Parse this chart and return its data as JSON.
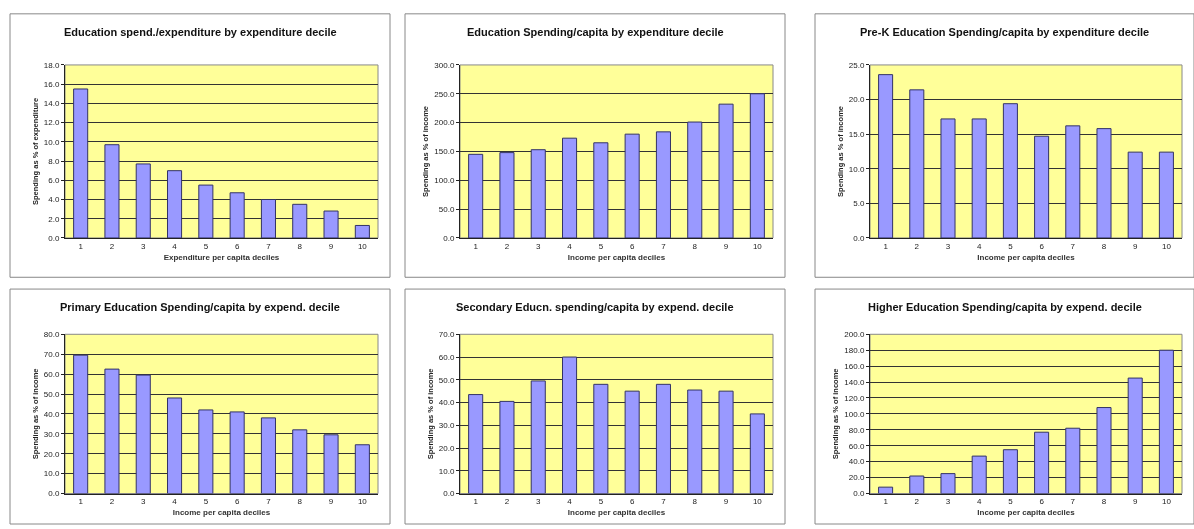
{
  "chart_data": [
    {
      "type": "bar",
      "title": "Education spend./expenditure by expenditure decile",
      "xlabel": "Expenditure per capita deciles",
      "ylabel": "Spending as % of expenditure",
      "categories": [
        "1",
        "2",
        "3",
        "4",
        "5",
        "6",
        "7",
        "8",
        "9",
        "10"
      ],
      "values": [
        15.5,
        9.7,
        7.7,
        7.0,
        5.5,
        4.7,
        4.0,
        3.5,
        2.8,
        1.3
      ],
      "color": "#9999ff",
      "ylim": [
        0,
        18
      ],
      "yticks": [
        {
          "value": 0,
          "label": "0.0"
        },
        {
          "value": 2,
          "label": "2.0"
        },
        {
          "value": 4,
          "label": "4.0"
        },
        {
          "value": 6,
          "label": "6.0"
        },
        {
          "value": 8,
          "label": "8.0"
        },
        {
          "value": 10,
          "label": "10.0"
        },
        {
          "value": 12,
          "label": "12.0"
        },
        {
          "value": 14,
          "label": "14.0"
        },
        {
          "value": 16,
          "label": "16.0"
        },
        {
          "value": 18,
          "label": "18.0"
        }
      ],
      "grid": "y"
    },
    {
      "type": "bar",
      "title": "Education Spending/capita by expenditure decile",
      "xlabel": "Income per capita deciles",
      "ylabel": "Spending as % of income",
      "categories": [
        "1",
        "2",
        "3",
        "4",
        "5",
        "6",
        "7",
        "8",
        "9",
        "10"
      ],
      "values": [
        145,
        148,
        153,
        173,
        165,
        180,
        184,
        201,
        232,
        250
      ],
      "color": "#9999ff",
      "ylim": [
        0,
        300
      ],
      "yticks": [
        {
          "value": 0,
          "label": "0.0"
        },
        {
          "value": 50,
          "label": "50.0"
        },
        {
          "value": 100,
          "label": "100.0"
        },
        {
          "value": 150,
          "label": "150.0"
        },
        {
          "value": 200,
          "label": "200.0"
        },
        {
          "value": 250,
          "label": "250.0"
        },
        {
          "value": 300,
          "label": "300.0"
        }
      ],
      "grid": "y"
    },
    {
      "type": "bar",
      "title": "Pre-K Education Spending/capita by expenditure decile",
      "xlabel": "Income per capita deciles",
      "ylabel": "Spending as % of income",
      "categories": [
        "1",
        "2",
        "3",
        "4",
        "5",
        "6",
        "7",
        "8",
        "9",
        "10"
      ],
      "values": [
        23.6,
        21.4,
        17.2,
        17.2,
        19.4,
        14.7,
        16.2,
        15.8,
        12.4,
        12.4
      ],
      "color": "#9999ff",
      "ylim": [
        0,
        25
      ],
      "yticks": [
        {
          "value": 0,
          "label": "0.0"
        },
        {
          "value": 5,
          "label": "5.0"
        },
        {
          "value": 10,
          "label": "10.0"
        },
        {
          "value": 15,
          "label": "15.0"
        },
        {
          "value": 20,
          "label": "20.0"
        },
        {
          "value": 25,
          "label": "25.0"
        }
      ],
      "grid": "y"
    },
    {
      "type": "bar",
      "title": "Primary Education Spending/capita by expend. decile",
      "xlabel": "Income per capita deciles",
      "ylabel": "Spending as % of income",
      "categories": [
        "1",
        "2",
        "3",
        "4",
        "5",
        "6",
        "7",
        "8",
        "9",
        "10"
      ],
      "values": [
        69.5,
        62.5,
        59.5,
        48,
        42,
        41,
        38,
        32,
        29.5,
        24.5
      ],
      "color": "#9999ff",
      "ylim": [
        0,
        80
      ],
      "yticks": [
        {
          "value": 0,
          "label": "0.0"
        },
        {
          "value": 10,
          "label": "10.0"
        },
        {
          "value": 20,
          "label": "20.0"
        },
        {
          "value": 30,
          "label": "30.0"
        },
        {
          "value": 40,
          "label": "40.0"
        },
        {
          "value": 50,
          "label": "50.0"
        },
        {
          "value": 60,
          "label": "60.0"
        },
        {
          "value": 70,
          "label": "70.0"
        },
        {
          "value": 80,
          "label": "80.0"
        }
      ],
      "grid": "y"
    },
    {
      "type": "bar",
      "title": "Secondary Educn. spending/capita by expend. decile",
      "xlabel": "Income per capita deciles",
      "ylabel": "Spending as % of income",
      "categories": [
        "1",
        "2",
        "3",
        "4",
        "5",
        "6",
        "7",
        "8",
        "9",
        "10"
      ],
      "values": [
        43.5,
        40.5,
        49.5,
        60,
        48,
        45,
        48,
        45.5,
        45,
        35
      ],
      "color": "#9999ff",
      "ylim": [
        0,
        70
      ],
      "yticks": [
        {
          "value": 0,
          "label": "0.0"
        },
        {
          "value": 10,
          "label": "10.0"
        },
        {
          "value": 20,
          "label": "20.0"
        },
        {
          "value": 30,
          "label": "30.0"
        },
        {
          "value": 40,
          "label": "40.0"
        },
        {
          "value": 50,
          "label": "50.0"
        },
        {
          "value": 60,
          "label": "60.0"
        },
        {
          "value": 70,
          "label": "70.0"
        }
      ],
      "grid": "y"
    },
    {
      "type": "bar",
      "title": "Higher Education Spending/capita by expend. decile",
      "xlabel": "Income per capita deciles",
      "ylabel": "Spending as % of income",
      "categories": [
        "1",
        "2",
        "3",
        "4",
        "5",
        "6",
        "7",
        "8",
        "9",
        "10"
      ],
      "values": [
        8,
        22,
        25,
        47,
        55,
        77,
        82,
        108,
        145,
        180
      ],
      "color": "#9999ff",
      "ylim": [
        0,
        200
      ],
      "yticks": [
        {
          "value": 0,
          "label": "0.0"
        },
        {
          "value": 20,
          "label": "20.0"
        },
        {
          "value": 40,
          "label": "40.0"
        },
        {
          "value": 60,
          "label": "60.0"
        },
        {
          "value": 80,
          "label": "80.0"
        },
        {
          "value": 100,
          "label": "100.0"
        },
        {
          "value": 120,
          "label": "120.0"
        },
        {
          "value": 140,
          "label": "140.0"
        },
        {
          "value": 160,
          "label": "160.0"
        },
        {
          "value": 180,
          "label": "180.0"
        },
        {
          "value": 200,
          "label": "200.0"
        }
      ],
      "grid": "y"
    }
  ]
}
